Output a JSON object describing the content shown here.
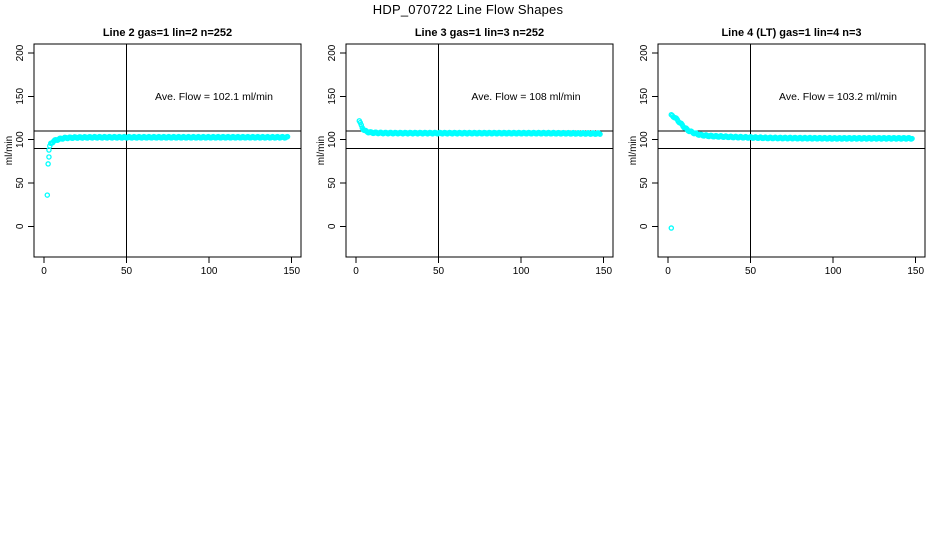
{
  "figure": {
    "title": "HDP_070722  Line Flow Shapes"
  },
  "chart_data": [
    {
      "type": "scatter",
      "title": "Line 2 gas=1 lin=2 n=252",
      "annotation": "Ave. Flow =  102.1  ml/min",
      "ave_flow_ml_min": 102.1,
      "n": 252,
      "ylabel": "ml/min",
      "x_ticks": [
        0,
        50,
        100,
        150
      ],
      "y_ticks": [
        0,
        50,
        100,
        150,
        200
      ],
      "xlim": [
        0,
        150
      ],
      "ylim": [
        0,
        200
      ],
      "ref_lines_y": [
        90,
        110
      ],
      "ref_line_x": 50,
      "point_color": "#00ffff",
      "grid": false,
      "isolated_points": [
        [
          2,
          36
        ],
        [
          2.5,
          72
        ],
        [
          3,
          80
        ],
        [
          3,
          88
        ]
      ],
      "profile_points": [
        [
          3.5,
          92
        ],
        [
          4,
          95
        ],
        [
          5,
          97
        ],
        [
          6,
          98.5
        ],
        [
          8,
          100
        ],
        [
          10,
          101
        ],
        [
          12,
          101.8
        ],
        [
          15,
          102.2
        ],
        [
          20,
          102.5
        ],
        [
          30,
          102.7
        ],
        [
          50,
          102.7
        ],
        [
          70,
          102.7
        ],
        [
          90,
          102.7
        ],
        [
          110,
          102.7
        ],
        [
          130,
          102.7
        ],
        [
          148,
          102.7
        ]
      ]
    },
    {
      "type": "scatter",
      "title": "Line 3 gas=1 lin=3 n=252",
      "annotation": "Ave. Flow =  108  ml/min",
      "ave_flow_ml_min": 108,
      "n": 252,
      "ylabel": "ml/min",
      "x_ticks": [
        0,
        50,
        100,
        150
      ],
      "y_ticks": [
        0,
        50,
        100,
        150,
        200
      ],
      "xlim": [
        0,
        150
      ],
      "ylim": [
        0,
        200
      ],
      "ref_lines_y": [
        90,
        110
      ],
      "ref_line_x": 50,
      "point_color": "#00ffff",
      "grid": false,
      "isolated_points": [],
      "profile_points": [
        [
          2,
          122
        ],
        [
          3,
          117
        ],
        [
          4,
          113
        ],
        [
          5,
          111
        ],
        [
          6,
          109.5
        ],
        [
          8,
          108.5
        ],
        [
          10,
          108
        ],
        [
          15,
          107.7
        ],
        [
          20,
          107.6
        ],
        [
          30,
          107.5
        ],
        [
          50,
          107.5
        ],
        [
          70,
          107.5
        ],
        [
          90,
          107.5
        ],
        [
          110,
          107.5
        ],
        [
          130,
          107.3
        ],
        [
          148,
          107
        ]
      ]
    },
    {
      "type": "scatter",
      "title": "Line 4 (LT) gas=1 lin=4 n=3",
      "annotation": "Ave. Flow =  103.2  ml/min",
      "ave_flow_ml_min": 103.2,
      "n": 3,
      "ylabel": "ml/min",
      "x_ticks": [
        0,
        50,
        100,
        150
      ],
      "y_ticks": [
        0,
        50,
        100,
        150,
        200
      ],
      "xlim": [
        0,
        150
      ],
      "ylim": [
        0,
        200
      ],
      "ref_lines_y": [
        90,
        110
      ],
      "ref_line_x": 50,
      "point_color": "#00ffff",
      "grid": false,
      "isolated_points": [
        [
          2,
          -2
        ]
      ],
      "profile_points": [
        [
          2,
          128
        ],
        [
          3,
          127
        ],
        [
          4,
          126
        ],
        [
          5,
          124
        ],
        [
          6,
          122
        ],
        [
          7,
          120
        ],
        [
          8,
          118
        ],
        [
          9,
          116
        ],
        [
          10,
          114
        ],
        [
          12,
          111
        ],
        [
          14,
          109
        ],
        [
          16,
          107.5
        ],
        [
          18,
          106.3
        ],
        [
          20,
          105.3
        ],
        [
          25,
          104.3
        ],
        [
          30,
          103.8
        ],
        [
          40,
          103
        ],
        [
          50,
          102.5
        ],
        [
          60,
          102
        ],
        [
          80,
          101.7
        ],
        [
          100,
          101.5
        ],
        [
          120,
          101.5
        ],
        [
          148,
          101.5
        ]
      ]
    }
  ]
}
